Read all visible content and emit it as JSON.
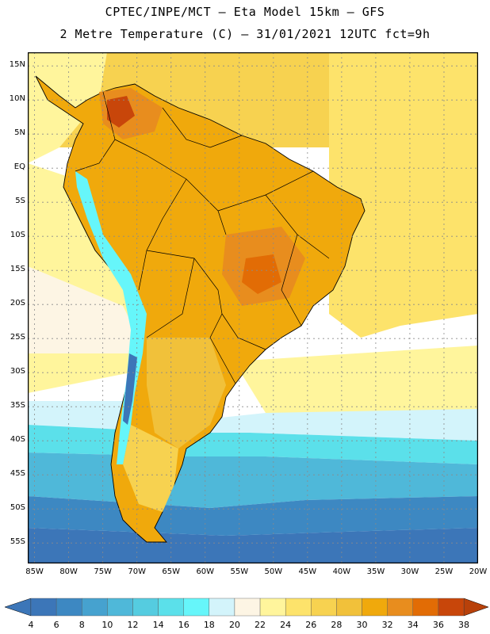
{
  "title": {
    "line1": "CPTEC/INPE/MCT –  Eta Model 15km – GFS",
    "line2": "2 Metre Temperature (C) – 31/01/2021 12UTC fct=9h"
  },
  "map": {
    "lon_range": [
      -86,
      -20
    ],
    "lat_range": [
      -58,
      17
    ],
    "lat_ticks": [
      {
        "value": 15,
        "label": "15N"
      },
      {
        "value": 10,
        "label": "10N"
      },
      {
        "value": 5,
        "label": "5N"
      },
      {
        "value": 0,
        "label": "EQ"
      },
      {
        "value": -5,
        "label": "5S"
      },
      {
        "value": -10,
        "label": "10S"
      },
      {
        "value": -15,
        "label": "15S"
      },
      {
        "value": -20,
        "label": "20S"
      },
      {
        "value": -25,
        "label": "25S"
      },
      {
        "value": -30,
        "label": "30S"
      },
      {
        "value": -35,
        "label": "35S"
      },
      {
        "value": -40,
        "label": "40S"
      },
      {
        "value": -45,
        "label": "45S"
      },
      {
        "value": -50,
        "label": "50S"
      },
      {
        "value": -55,
        "label": "55S"
      }
    ],
    "lon_ticks": [
      {
        "value": -85,
        "label": "85W"
      },
      {
        "value": -80,
        "label": "80W"
      },
      {
        "value": -75,
        "label": "75W"
      },
      {
        "value": -70,
        "label": "70W"
      },
      {
        "value": -65,
        "label": "65W"
      },
      {
        "value": -60,
        "label": "60W"
      },
      {
        "value": -55,
        "label": "55W"
      },
      {
        "value": -50,
        "label": "50W"
      },
      {
        "value": -45,
        "label": "45W"
      },
      {
        "value": -40,
        "label": "40W"
      },
      {
        "value": -35,
        "label": "35W"
      },
      {
        "value": -30,
        "label": "30W"
      },
      {
        "value": -25,
        "label": "25W"
      },
      {
        "value": -20,
        "label": "20W"
      }
    ]
  },
  "legend": {
    "below_color": "#3c76b8",
    "above_color": "#b8410a",
    "bins": [
      {
        "color": "#3c76b8"
      },
      {
        "color": "#3d88c2"
      },
      {
        "color": "#46a2cf"
      },
      {
        "color": "#4fb8d9"
      },
      {
        "color": "#55cce0"
      },
      {
        "color": "#5be0ea"
      },
      {
        "color": "#66f6fa"
      },
      {
        "color": "#d3f4fb"
      },
      {
        "color": "#fdf5e4"
      },
      {
        "color": "#fff59c"
      },
      {
        "color": "#fde36b"
      },
      {
        "color": "#f7d250"
      },
      {
        "color": "#f1c13a"
      },
      {
        "color": "#f0a90c"
      },
      {
        "color": "#e88d1e"
      },
      {
        "color": "#e26c05"
      },
      {
        "color": "#c8460a"
      }
    ],
    "labels": [
      "4",
      "6",
      "8",
      "10",
      "12",
      "14",
      "16",
      "18",
      "20",
      "22",
      "24",
      "26",
      "28",
      "30",
      "32",
      "34",
      "36",
      "38"
    ]
  }
}
